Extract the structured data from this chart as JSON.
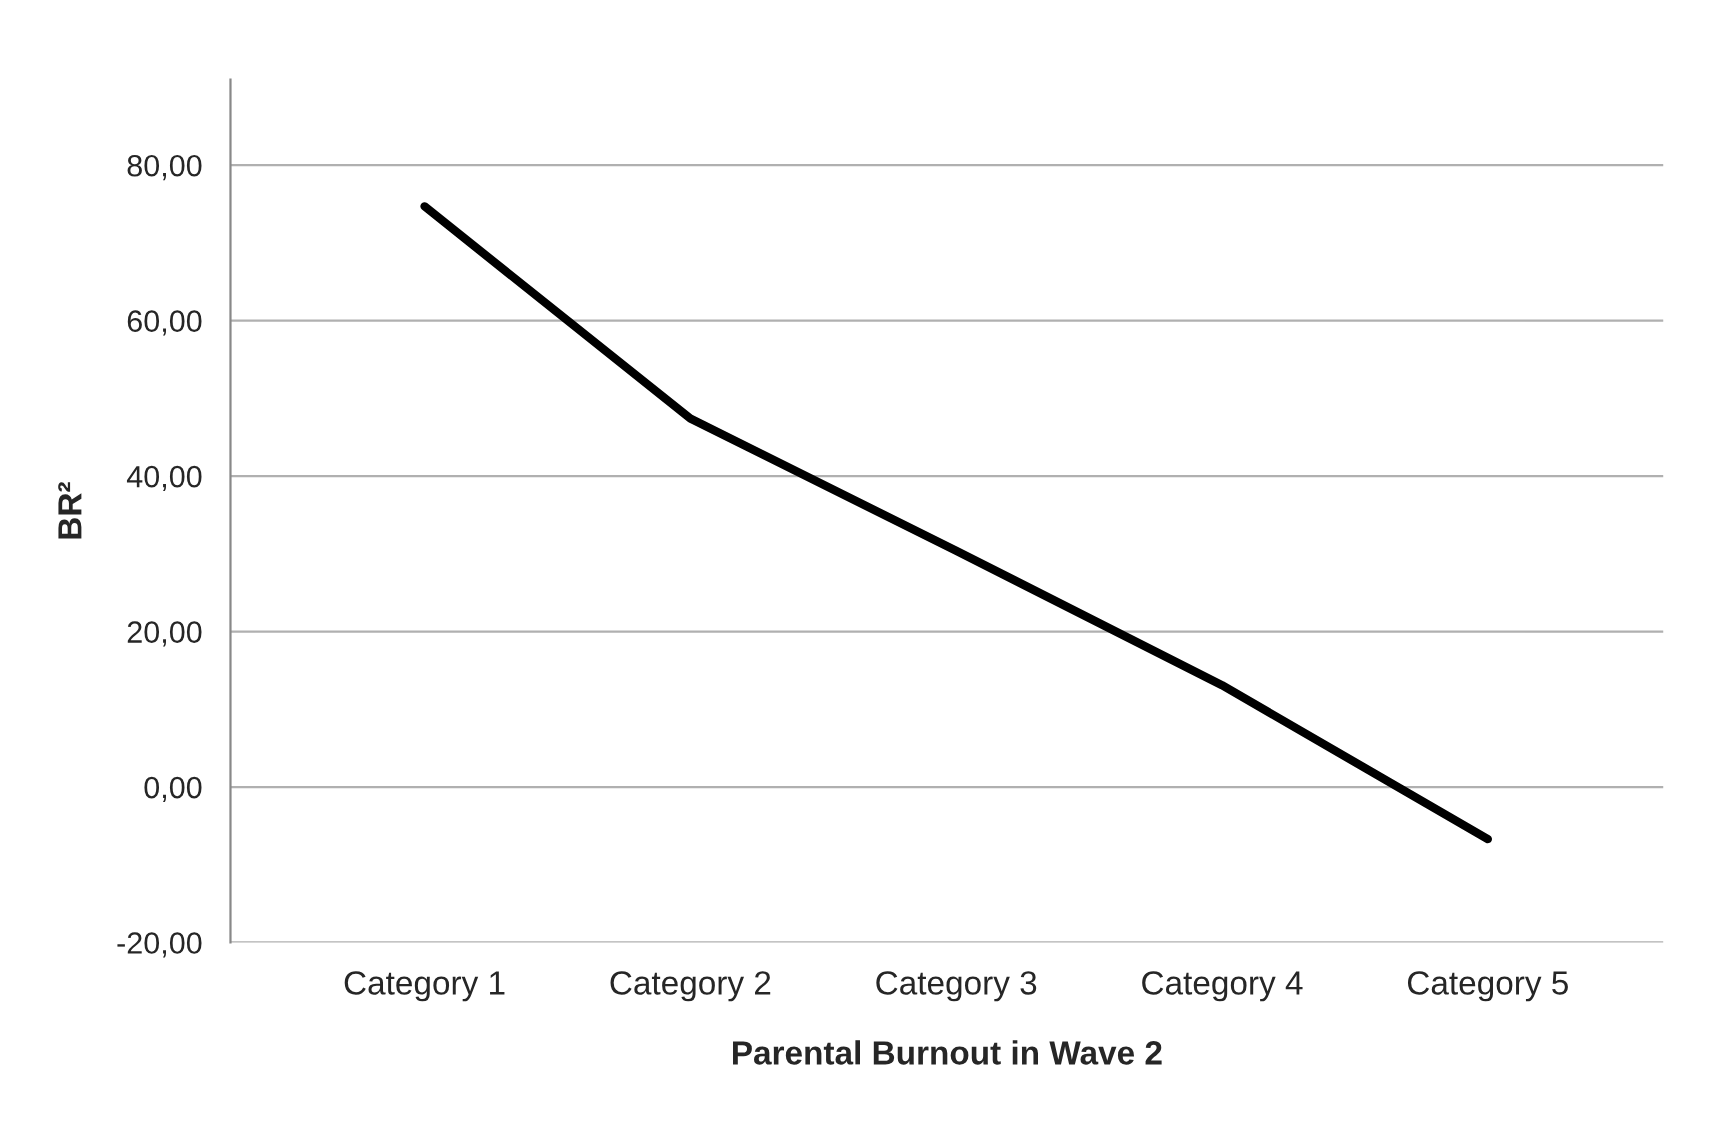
{
  "chart_data": {
    "type": "line",
    "xlabel": "Parental Burnout in Wave 2",
    "ylabel": "BR²",
    "categories": [
      "Category 1",
      "Category 2",
      "Category 3",
      "Category 4",
      "Category 5"
    ],
    "series": [
      {
        "color": "#000000",
        "values": [
          74.7,
          47.4,
          30.4,
          13.1,
          -6.7
        ]
      }
    ],
    "ylim": [
      -20,
      91
    ],
    "yticks": [
      {
        "value": -20,
        "label": "-20,00"
      },
      {
        "value": 0,
        "label": "0,00"
      },
      {
        "value": 20,
        "label": "20,00"
      },
      {
        "value": 40,
        "label": "40,00"
      },
      {
        "value": 60,
        "label": "60,00"
      },
      {
        "value": 80,
        "label": "80,00"
      }
    ],
    "grid": "y",
    "marker": "none",
    "line_style": "solid"
  }
}
